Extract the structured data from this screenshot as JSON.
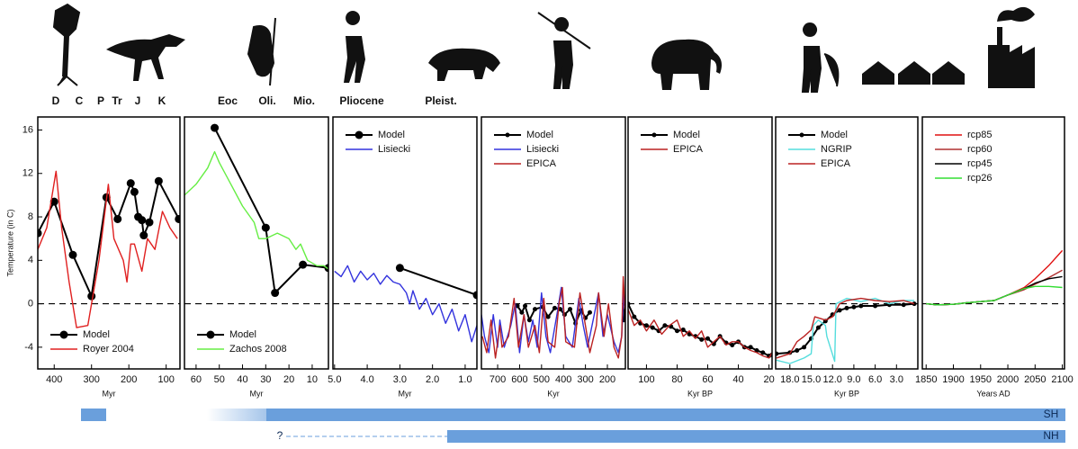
{
  "chart_data": [
    {
      "type": "line",
      "xlabel": "Myr",
      "ylabel": "Temperature (in C)",
      "xlim": [
        444,
        63
      ],
      "xticks": [
        400,
        300,
        200,
        100
      ],
      "ylim": [
        -6,
        17.2
      ],
      "yticks": [
        -4,
        0,
        4,
        8,
        12,
        16
      ],
      "hline": 0,
      "legend": "lower left",
      "series": [
        {
          "name": "Model",
          "color": "#000000",
          "marker": true,
          "x": [
            444,
            400,
            350,
            300,
            260,
            230,
            195,
            185,
            175,
            165,
            160,
            145,
            120,
            66
          ],
          "values": [
            6.5,
            9.4,
            4.5,
            0.7,
            9.8,
            7.8,
            11.1,
            10.3,
            8,
            7.7,
            6.3,
            7.5,
            11.3,
            7.8
          ]
        },
        {
          "name": "Royer 2004",
          "color": "#e02020",
          "marker": false,
          "x": [
            444,
            420,
            395,
            380,
            360,
            340,
            310,
            280,
            255,
            240,
            215,
            205,
            195,
            185,
            165,
            150,
            130,
            110,
            90,
            70
          ],
          "values": [
            5,
            7,
            12.2,
            7,
            2,
            -2.2,
            -2,
            4,
            11,
            6,
            4,
            2,
            5.5,
            5.5,
            3,
            6,
            5,
            8.5,
            7,
            6
          ]
        }
      ]
    },
    {
      "type": "line",
      "xlabel": "Myr",
      "xlim": [
        65,
        3
      ],
      "xticks": [
        60,
        50,
        40,
        30,
        20,
        10
      ],
      "ylim": [
        -6,
        17.2
      ],
      "hline": 0,
      "legend": "lower left",
      "series": [
        {
          "name": "Model",
          "color": "#000000",
          "marker": true,
          "x": [
            52,
            30,
            26,
            14,
            3
          ],
          "values": [
            16.2,
            7,
            1,
            3.6,
            3.3
          ]
        },
        {
          "name": "Zachos 2008",
          "color": "#66ee44",
          "marker": false,
          "x": [
            65,
            60,
            55,
            52,
            50,
            45,
            40,
            35,
            33,
            30,
            25,
            20,
            17,
            15,
            12,
            8,
            5,
            3
          ],
          "values": [
            10,
            11,
            12.5,
            14,
            13,
            11,
            9,
            7.5,
            6,
            6,
            6.5,
            6,
            5,
            5.5,
            4,
            3.5,
            3.5,
            3.2
          ]
        }
      ]
    },
    {
      "type": "line",
      "xlabel": "Myr",
      "xlim": [
        5.05,
        0.64
      ],
      "xticks": [
        {
          "value": 5,
          "label": "5.0"
        },
        {
          "value": 4,
          "label": "4.0"
        },
        {
          "value": 3,
          "label": "3.0"
        },
        {
          "value": 2,
          "label": "2.0"
        },
        {
          "value": 1,
          "label": "1.0"
        }
      ],
      "ylim": [
        -6,
        17.2
      ],
      "hline": 0,
      "legend": "upper left",
      "series": [
        {
          "name": "Model",
          "color": "#000000",
          "marker": true,
          "x": [
            3,
            0.64
          ],
          "values": [
            3.3,
            0.8
          ]
        },
        {
          "name": "Lisiecki",
          "color": "#3333dd",
          "marker": false,
          "x": [
            5,
            4.8,
            4.6,
            4.4,
            4.2,
            4,
            3.8,
            3.6,
            3.4,
            3.2,
            3,
            2.8,
            2.7,
            2.6,
            2.4,
            2.2,
            2,
            1.8,
            1.6,
            1.4,
            1.2,
            1,
            0.8,
            0.64
          ],
          "values": [
            3,
            2.5,
            3.5,
            2,
            3,
            2.2,
            2.8,
            1.8,
            2.6,
            2,
            1.8,
            1,
            0,
            1.2,
            -0.5,
            0.5,
            -1,
            0,
            -1.8,
            -0.5,
            -2.5,
            -1,
            -3.5,
            -2
          ]
        }
      ]
    },
    {
      "type": "line",
      "xlabel": "Kyr",
      "xlim": [
        774,
        118
      ],
      "xticks": [
        700,
        600,
        500,
        400,
        300,
        200
      ],
      "ylim": [
        -6,
        17.2
      ],
      "hline": 0,
      "legend": "upper left",
      "series": [
        {
          "name": "Model",
          "color": "#000000",
          "marker": true,
          "x": [
            610,
            590,
            575,
            555,
            530,
            495,
            470,
            440,
            415,
            395,
            370,
            345,
            320,
            300,
            280,
            200,
            125,
            120
          ],
          "values": [
            -0.2,
            -0.8,
            -0.2,
            -1.5,
            -0.5,
            -0.3,
            -1.2,
            -0.4,
            -0.5,
            -1,
            -0.5,
            -1.8,
            -0.6,
            -1.3,
            -0.8,
            null,
            -1.5,
            0
          ]
        },
        {
          "name": "Lisiecki",
          "color": "#3333dd",
          "marker": false,
          "x": [
            774,
            760,
            740,
            720,
            700,
            690,
            670,
            640,
            620,
            600,
            580,
            560,
            540,
            520,
            500,
            480,
            460,
            430,
            410,
            390,
            360,
            330,
            310,
            290,
            260,
            240,
            220,
            200,
            170,
            150,
            135,
            125
          ],
          "values": [
            -1,
            -3,
            -4.5,
            -1,
            -4,
            -1.5,
            -4,
            -2,
            0,
            -4.5,
            -1,
            -3.5,
            -1.5,
            -4,
            1,
            -3,
            -4.5,
            -1,
            1.5,
            -3,
            -4,
            0.5,
            -2,
            -4,
            -1,
            1,
            -3,
            -1,
            -3.5,
            -4.5,
            -3,
            1
          ]
        },
        {
          "name": "EPICA",
          "color": "#bb2222",
          "marker": false,
          "x": [
            770,
            750,
            730,
            710,
            690,
            680,
            650,
            625,
            605,
            580,
            560,
            530,
            510,
            490,
            470,
            440,
            420,
            405,
            390,
            350,
            325,
            300,
            280,
            250,
            240,
            215,
            195,
            170,
            150,
            135,
            128,
            120
          ],
          "values": [
            -3,
            -4.5,
            -1.5,
            -5,
            -2,
            -4,
            -3,
            0.5,
            -4,
            -1,
            -4,
            -2,
            -4.5,
            0.5,
            -3.5,
            -4,
            0,
            1.5,
            -3.5,
            -4,
            1,
            -2,
            -4.5,
            -2,
            1,
            -3,
            0,
            -4,
            -5,
            -3,
            2.5,
            -0.5
          ]
        }
      ]
    },
    {
      "type": "line",
      "xlabel": "Kyr BP",
      "xlim": [
        112,
        18
      ],
      "xticks": [
        100,
        80,
        60,
        40,
        20
      ],
      "ylim": [
        -6,
        17.2
      ],
      "hline": 0,
      "legend": "upper left",
      "series": [
        {
          "name": "Model",
          "color": "#000000",
          "marker": true,
          "x": [
            112,
            108,
            104,
            100,
            96,
            92,
            88,
            84,
            80,
            76,
            72,
            68,
            64,
            60,
            56,
            52,
            48,
            44,
            40,
            36,
            32,
            28,
            24,
            20,
            18
          ],
          "values": [
            0,
            -1.2,
            -1.8,
            -2,
            -2.2,
            -2.5,
            -2,
            -2.1,
            -2.5,
            -2.4,
            -2.8,
            -3,
            -3.3,
            -3.2,
            -3.7,
            -3,
            -3.6,
            -3.8,
            -3.5,
            -4,
            -4,
            -4.3,
            -4.5,
            -4.8,
            -4.7
          ]
        },
        {
          "name": "EPICA",
          "color": "#bb2222",
          "marker": false,
          "x": [
            112,
            108,
            104,
            100,
            95,
            90,
            85,
            80,
            76,
            72,
            68,
            64,
            60,
            56,
            52,
            48,
            44,
            40,
            36,
            32,
            28,
            24,
            20,
            18
          ],
          "values": [
            -0.5,
            -2,
            -1.5,
            -2.5,
            -1.5,
            -2.8,
            -2,
            -1.5,
            -3,
            -2.5,
            -3.2,
            -2.5,
            -4,
            -3.5,
            -3,
            -3.8,
            -3.5,
            -3.5,
            -4,
            -4.3,
            -4.5,
            -4.8,
            -5,
            -4.5
          ]
        }
      ]
    },
    {
      "type": "line",
      "xlabel": "Kyr BP",
      "xlim": [
        20,
        0
      ],
      "xticks": [
        {
          "value": 18,
          "label": "18.0"
        },
        {
          "value": 15,
          "label": "15.0"
        },
        {
          "value": 12,
          "label": "12.0"
        },
        {
          "value": 9,
          "label": "9.0"
        },
        {
          "value": 6,
          "label": "6.0"
        },
        {
          "value": 3,
          "label": "3.0"
        }
      ],
      "ylim": [
        -6,
        17.2
      ],
      "hline": 0,
      "legend": "upper left",
      "series": [
        {
          "name": "Model",
          "color": "#000000",
          "marker": true,
          "x": [
            19.9,
            18,
            17,
            16,
            15,
            14,
            13,
            12,
            11,
            10,
            9,
            8,
            6,
            4,
            2,
            0.5
          ],
          "values": [
            -4.6,
            -4.5,
            -4.3,
            -4,
            -3.2,
            -2.2,
            -1.6,
            -1,
            -0.6,
            -0.4,
            -0.3,
            -0.2,
            -0.2,
            -0.1,
            -0.1,
            0
          ]
        },
        {
          "name": "NGRIP",
          "color": "#55dddd",
          "marker": false,
          "x": [
            19.9,
            18,
            16,
            15,
            14.7,
            14,
            13,
            12.8,
            11.7,
            11.5,
            10,
            8,
            6,
            4,
            2,
            0.5
          ],
          "values": [
            -5.2,
            -5.5,
            -5,
            -4.6,
            -2,
            -1.5,
            -2,
            -3,
            -5.3,
            0,
            0.5,
            0.2,
            0.5,
            0,
            0.3,
            0.3
          ]
        },
        {
          "name": "EPICA",
          "color": "#bb2222",
          "marker": false,
          "x": [
            19.9,
            18,
            17,
            16,
            15,
            14.5,
            13,
            12,
            11,
            10,
            8,
            6,
            4,
            2,
            0.5
          ],
          "values": [
            -5,
            -4.6,
            -3.5,
            -3,
            -2.4,
            -1.2,
            -1.5,
            -1.2,
            0,
            0.3,
            0.5,
            0.3,
            0.2,
            0.3,
            0
          ]
        }
      ]
    },
    {
      "type": "line",
      "xlabel": "Years AD",
      "xlim": [
        1843,
        2104
      ],
      "xticks": [
        1850,
        1900,
        1950,
        2000,
        2050,
        2100
      ],
      "ylim": [
        -6,
        17.2
      ],
      "hline": 0,
      "legend": "upper left",
      "series": [
        {
          "name": "rcp85",
          "color": "#e01010",
          "marker": false,
          "x": [
            1850,
            1870,
            1900,
            1925,
            1950,
            1975,
            2000,
            2030,
            2050,
            2075,
            2100
          ],
          "values": [
            0,
            -0.1,
            -0.05,
            0.1,
            0.2,
            0.3,
            0.8,
            1.5,
            2.3,
            3.5,
            4.9
          ]
        },
        {
          "name": "rcp60",
          "color": "#b03030",
          "marker": false,
          "x": [
            1850,
            1870,
            1900,
            1925,
            1950,
            1975,
            2000,
            2030,
            2050,
            2075,
            2100
          ],
          "values": [
            0,
            -0.1,
            -0.05,
            0.1,
            0.2,
            0.3,
            0.8,
            1.3,
            1.8,
            2.4,
            3.1
          ]
        },
        {
          "name": "rcp45",
          "color": "#000000",
          "marker": false,
          "x": [
            1850,
            1870,
            1900,
            1925,
            1950,
            1975,
            2000,
            2030,
            2050,
            2075,
            2100
          ],
          "values": [
            0,
            -0.1,
            -0.05,
            0.1,
            0.2,
            0.3,
            0.8,
            1.4,
            1.9,
            2.3,
            2.5
          ]
        },
        {
          "name": "rcp26",
          "color": "#33dd33",
          "marker": false,
          "x": [
            1850,
            1870,
            1900,
            1925,
            1950,
            1975,
            2000,
            2030,
            2050,
            2075,
            2100
          ],
          "values": [
            0,
            -0.1,
            -0.05,
            0.1,
            0.2,
            0.3,
            0.8,
            1.4,
            1.6,
            1.6,
            1.5
          ]
        }
      ]
    }
  ],
  "eras": [
    "D",
    "C",
    "P",
    "Tr",
    "J",
    "K",
    "Eoc",
    "Oli.",
    "Mio.",
    "Pliocene",
    "Pleist."
  ],
  "ice_bars": {
    "sh": {
      "label": "SH"
    },
    "nh": {
      "label": "NH",
      "uncertain": "?"
    }
  }
}
